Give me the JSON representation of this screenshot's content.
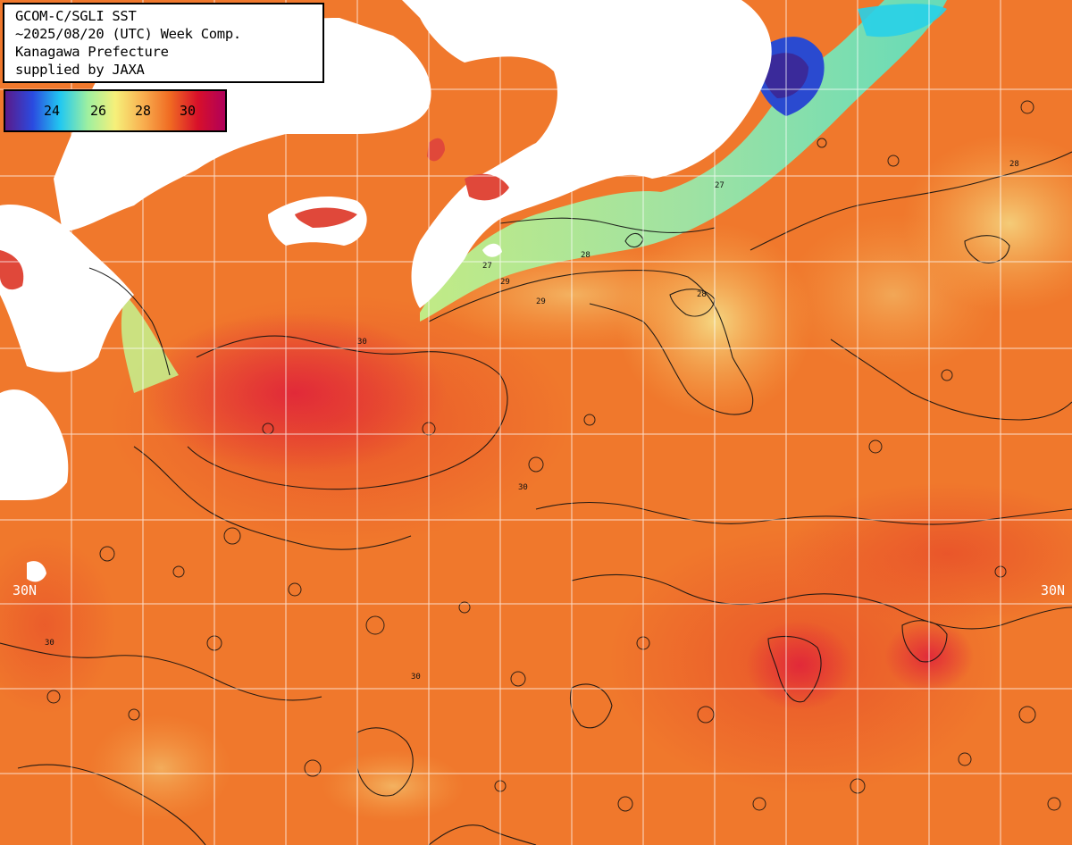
{
  "title": {
    "line1": "GCOM-C/SGLI SST",
    "line2": "~2025/08/20 (UTC) Week Comp.",
    "line3": "Kanagawa Prefecture",
    "line4": "supplied by JAXA"
  },
  "legend": {
    "ticks": [
      "24",
      "26",
      "28",
      "30"
    ],
    "colors": [
      "#5a1a8a",
      "#2a4be0",
      "#22c8f0",
      "#9ef0a0",
      "#f6f07a",
      "#f8b050",
      "#f06a22",
      "#d8102a",
      "#b0005a"
    ]
  },
  "map": {
    "lat_label_left": "30N",
    "lat_label_right": "30N",
    "contour_labels": [
      "28",
      "28",
      "28",
      "29",
      "29",
      "30",
      "30",
      "30",
      "30",
      "27",
      "27"
    ],
    "land_color": "#ffffff",
    "grid_color": "#ffffff"
  }
}
